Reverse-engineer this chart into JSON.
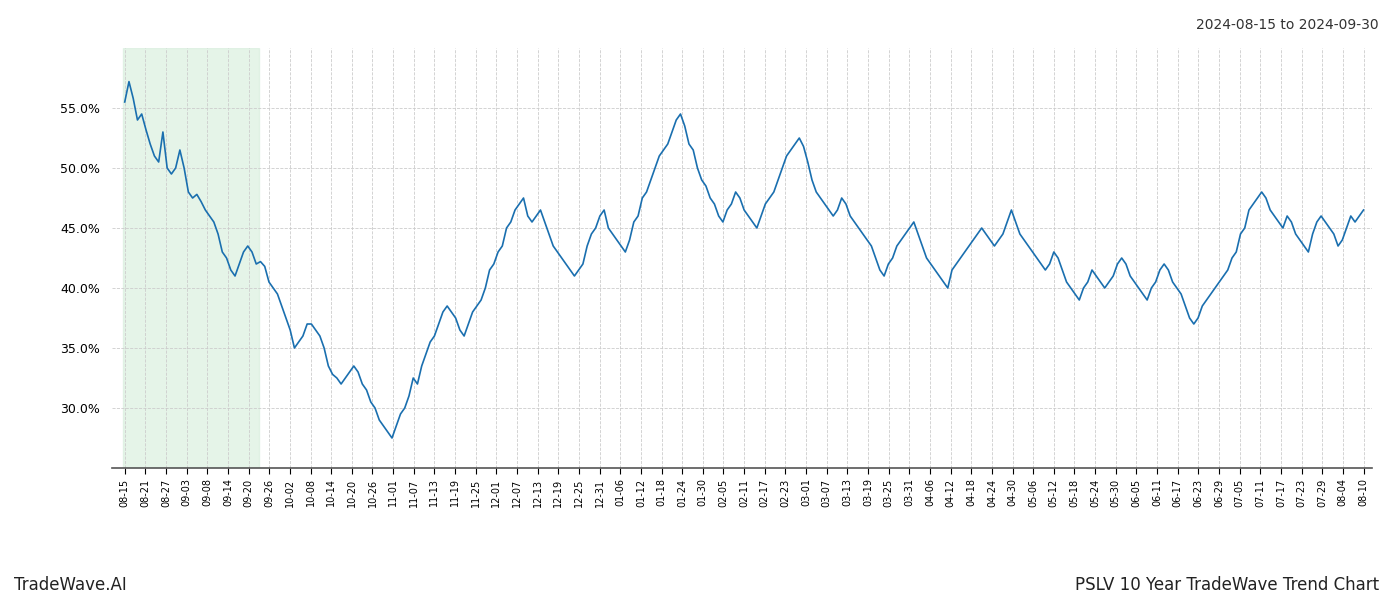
{
  "title_right": "2024-08-15 to 2024-09-30",
  "footer_left": "TradeWave.AI",
  "footer_right": "PSLV 10 Year TradeWave Trend Chart",
  "line_color": "#1a6faf",
  "highlight_color": "#d4edda",
  "highlight_alpha": 0.6,
  "background_color": "#ffffff",
  "grid_color": "#cccccc",
  "ylim": [
    25.0,
    60.0
  ],
  "yticks": [
    30.0,
    35.0,
    40.0,
    45.0,
    50.0,
    55.0
  ],
  "x_labels": [
    "08-15",
    "08-21",
    "08-27",
    "09-03",
    "09-08",
    "09-14",
    "09-20",
    "09-26",
    "10-02",
    "10-08",
    "10-14",
    "10-20",
    "10-26",
    "11-01",
    "11-07",
    "11-13",
    "11-19",
    "11-25",
    "12-01",
    "12-07",
    "12-13",
    "12-19",
    "12-25",
    "12-31",
    "01-06",
    "01-12",
    "01-18",
    "01-24",
    "01-30",
    "02-05",
    "02-11",
    "02-17",
    "02-23",
    "03-01",
    "03-07",
    "03-13",
    "03-19",
    "03-25",
    "03-31",
    "04-06",
    "04-12",
    "04-18",
    "04-24",
    "04-30",
    "05-06",
    "05-12",
    "05-18",
    "05-24",
    "05-30",
    "06-05",
    "06-11",
    "06-17",
    "06-23",
    "06-29",
    "07-05",
    "07-11",
    "07-17",
    "07-23",
    "07-29",
    "08-04",
    "08-10"
  ],
  "highlight_label_start": "08-15",
  "highlight_label_end": "09-20",
  "values": [
    55.5,
    57.2,
    55.8,
    54.0,
    54.5,
    53.2,
    52.0,
    51.0,
    50.5,
    53.0,
    50.0,
    49.5,
    50.0,
    51.5,
    50.0,
    48.0,
    47.5,
    47.8,
    47.2,
    46.5,
    46.0,
    45.5,
    44.5,
    43.0,
    42.5,
    41.5,
    41.0,
    42.0,
    43.0,
    43.5,
    43.0,
    42.0,
    42.2,
    41.8,
    40.5,
    40.0,
    39.5,
    38.5,
    37.5,
    36.5,
    35.0,
    35.5,
    36.0,
    37.0,
    37.0,
    36.5,
    36.0,
    35.0,
    33.5,
    32.8,
    32.5,
    32.0,
    32.5,
    33.0,
    33.5,
    33.0,
    32.0,
    31.5,
    30.5,
    30.0,
    29.0,
    28.5,
    28.0,
    27.5,
    28.5,
    29.5,
    30.0,
    31.0,
    32.5,
    32.0,
    33.5,
    34.5,
    35.5,
    36.0,
    37.0,
    38.0,
    38.5,
    38.0,
    37.5,
    36.5,
    36.0,
    37.0,
    38.0,
    38.5,
    39.0,
    40.0,
    41.5,
    42.0,
    43.0,
    43.5,
    45.0,
    45.5,
    46.5,
    47.0,
    47.5,
    46.0,
    45.5,
    46.0,
    46.5,
    45.5,
    44.5,
    43.5,
    43.0,
    42.5,
    42.0,
    41.5,
    41.0,
    41.5,
    42.0,
    43.5,
    44.5,
    45.0,
    46.0,
    46.5,
    45.0,
    44.5,
    44.0,
    43.5,
    43.0,
    44.0,
    45.5,
    46.0,
    47.5,
    48.0,
    49.0,
    50.0,
    51.0,
    51.5,
    52.0,
    53.0,
    54.0,
    54.5,
    53.5,
    52.0,
    51.5,
    50.0,
    49.0,
    48.5,
    47.5,
    47.0,
    46.0,
    45.5,
    46.5,
    47.0,
    48.0,
    47.5,
    46.5,
    46.0,
    45.5,
    45.0,
    46.0,
    47.0,
    47.5,
    48.0,
    49.0,
    50.0,
    51.0,
    51.5,
    52.0,
    52.5,
    51.8,
    50.5,
    49.0,
    48.0,
    47.5,
    47.0,
    46.5,
    46.0,
    46.5,
    47.5,
    47.0,
    46.0,
    45.5,
    45.0,
    44.5,
    44.0,
    43.5,
    42.5,
    41.5,
    41.0,
    42.0,
    42.5,
    43.5,
    44.0,
    44.5,
    45.0,
    45.5,
    44.5,
    43.5,
    42.5,
    42.0,
    41.5,
    41.0,
    40.5,
    40.0,
    41.5,
    42.0,
    42.5,
    43.0,
    43.5,
    44.0,
    44.5,
    45.0,
    44.5,
    44.0,
    43.5,
    44.0,
    44.5,
    45.5,
    46.5,
    45.5,
    44.5,
    44.0,
    43.5,
    43.0,
    42.5,
    42.0,
    41.5,
    42.0,
    43.0,
    42.5,
    41.5,
    40.5,
    40.0,
    39.5,
    39.0,
    40.0,
    40.5,
    41.5,
    41.0,
    40.5,
    40.0,
    40.5,
    41.0,
    42.0,
    42.5,
    42.0,
    41.0,
    40.5,
    40.0,
    39.5,
    39.0,
    40.0,
    40.5,
    41.5,
    42.0,
    41.5,
    40.5,
    40.0,
    39.5,
    38.5,
    37.5,
    37.0,
    37.5,
    38.5,
    39.0,
    39.5,
    40.0,
    40.5,
    41.0,
    41.5,
    42.5,
    43.0,
    44.5,
    45.0,
    46.5,
    47.0,
    47.5,
    48.0,
    47.5,
    46.5,
    46.0,
    45.5,
    45.0,
    46.0,
    45.5,
    44.5,
    44.0,
    43.5,
    43.0,
    44.5,
    45.5,
    46.0,
    45.5,
    45.0,
    44.5,
    43.5,
    44.0,
    45.0,
    46.0,
    45.5,
    46.0,
    46.5
  ]
}
